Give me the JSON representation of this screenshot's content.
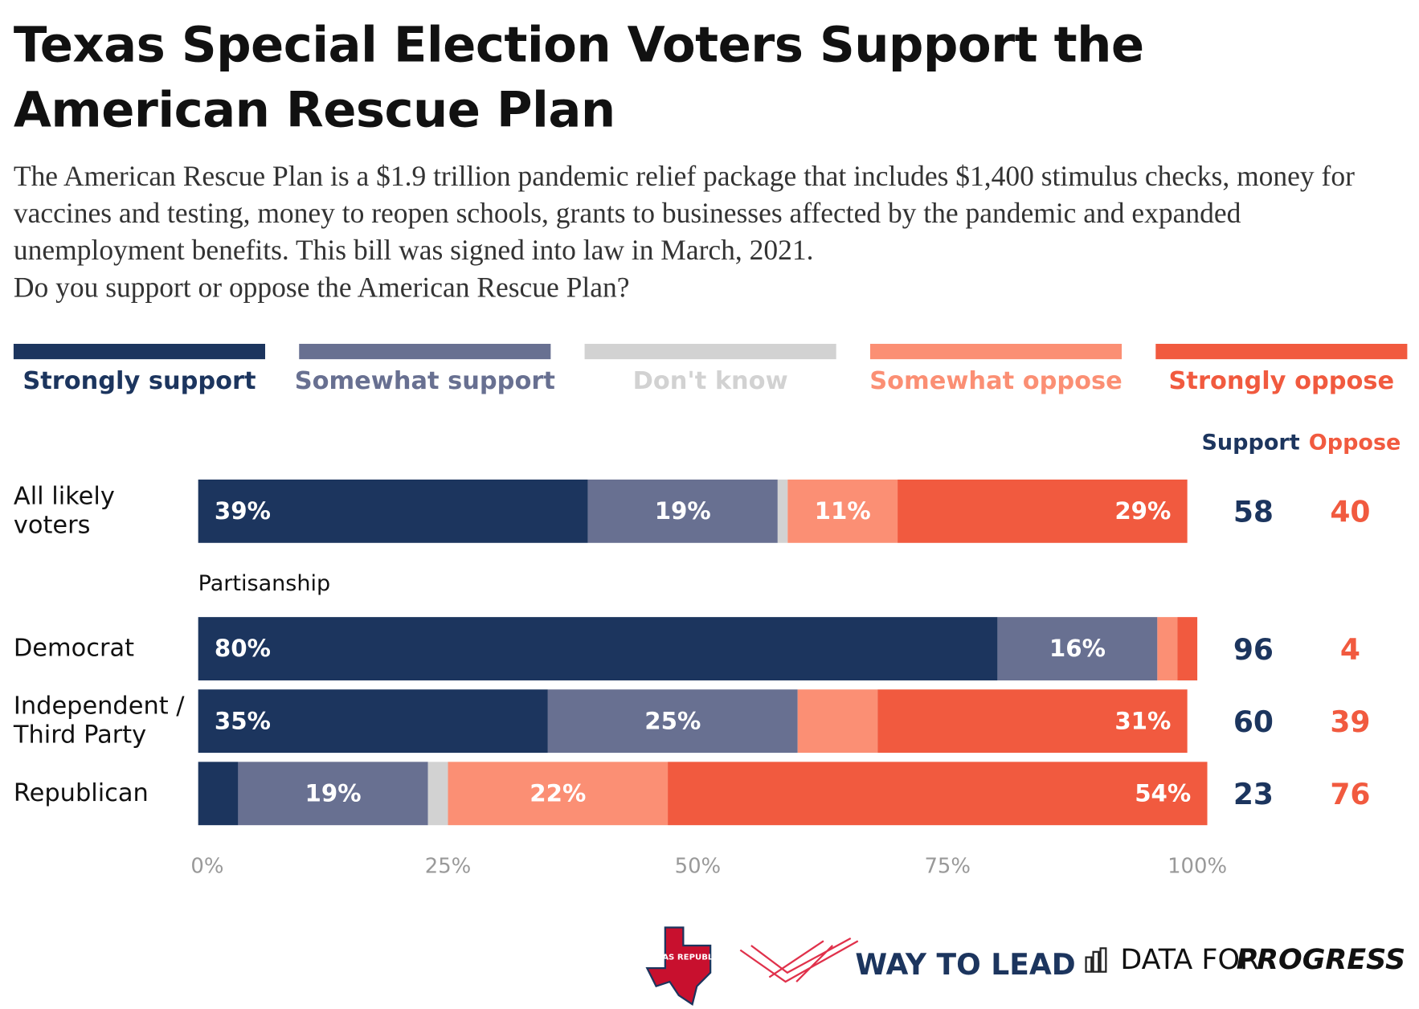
{
  "chart_data": {
    "type": "stacked-bar-horizontal",
    "title": "Texas Special Election Voters Support the American Rescue Plan",
    "subtitle": "The American Rescue Plan is a $1.9 trillion pandemic relief package that includes $1,400 stimulus checks, money for vaccines and testing, money to reopen schools, grants to businesses affected by the pandemic and expanded unemployment benefits. This bill was signed into law in March, 2021.",
    "question": "Do you support or oppose the American Rescue Plan?",
    "categories": [
      "All likely voters",
      "Democrat",
      "Independent / Third Party",
      "Republican"
    ],
    "group_label": "Partisanship",
    "series": [
      {
        "name": "Strongly support",
        "color": "#1c355e",
        "values": [
          39,
          80,
          35,
          4
        ],
        "value_labels": [
          "39%",
          "80%",
          "35%",
          null
        ]
      },
      {
        "name": "Somewhat support",
        "color": "#687091",
        "values": [
          19,
          16,
          25,
          19
        ],
        "value_labels": [
          "19%",
          "16%",
          "25%",
          "19%"
        ]
      },
      {
        "name": "Don't know",
        "color": "#d2d2d2",
        "values": [
          1,
          0,
          0,
          2
        ],
        "value_labels": [
          null,
          null,
          null,
          null
        ]
      },
      {
        "name": "Somewhat oppose",
        "color": "#fb8f74",
        "values": [
          11,
          2,
          8,
          22
        ],
        "value_labels": [
          "11%",
          null,
          null,
          "22%"
        ]
      },
      {
        "name": "Strongly oppose",
        "color": "#f15a3f",
        "values": [
          29,
          2,
          31,
          54
        ],
        "value_labels": [
          "29%",
          null,
          "31%",
          "54%"
        ]
      }
    ],
    "xlim": [
      0,
      100
    ],
    "xticks": [
      {
        "value": 0,
        "label": "0%"
      },
      {
        "value": 25,
        "label": "25%"
      },
      {
        "value": 50,
        "label": "50%"
      },
      {
        "value": 75,
        "label": "75%"
      },
      {
        "value": 100,
        "label": "100%"
      }
    ],
    "summary": {
      "support_label": "Support",
      "oppose_label": "Oppose",
      "support": [
        58,
        96,
        60,
        23
      ],
      "oppose": [
        40,
        4,
        39,
        76
      ]
    },
    "logos": {
      "boot_texas": "BOOT TEXAS REPUBLICANS",
      "way_to_lead": "WAY TO LEAD",
      "dfp_1": "DATA FOR",
      "dfp_2": "PROGRESS"
    }
  }
}
